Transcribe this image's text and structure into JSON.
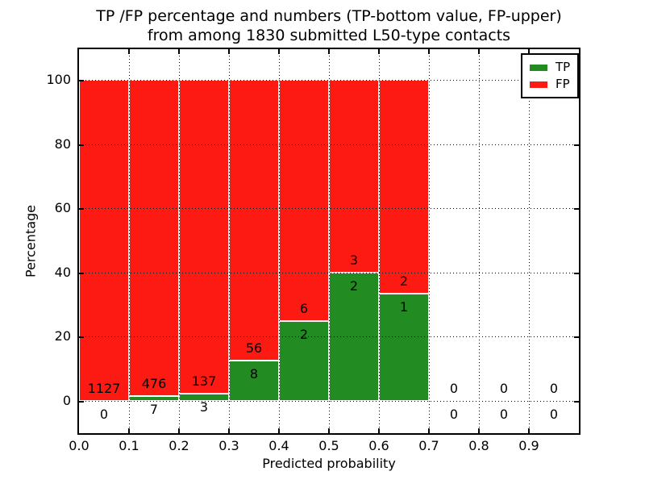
{
  "chart_data": {
    "type": "bar",
    "stacked": true,
    "title": "TP /FP percentage and numbers (TP-bottom value, FP-upper) from among 1830 submitted L50-type contacts",
    "title_line1": "TP /FP percentage and numbers (TP-bottom value, FP-upper)",
    "title_line2": "from among 1830 submitted L50-type contacts",
    "xlabel": "Predicted probability",
    "ylabel": "Percentage",
    "total_contacts": 1830,
    "xlim": [
      0.0,
      1.0
    ],
    "ylim": [
      -10,
      109.5
    ],
    "xticks": [
      "0.0",
      "0.1",
      "0.2",
      "0.3",
      "0.4",
      "0.5",
      "0.6",
      "0.7",
      "0.8",
      "0.9"
    ],
    "yticks": [
      0,
      20,
      40,
      60,
      80,
      100
    ],
    "grid": "dotted",
    "legend_position": "upper right",
    "series": [
      {
        "name": "TP",
        "color": "#228b22"
      },
      {
        "name": "FP",
        "color": "#fc1a13"
      }
    ],
    "bins": [
      {
        "range": [
          0.0,
          0.1
        ],
        "tp": 0,
        "fp": 1127,
        "tp_pct": 0.0
      },
      {
        "range": [
          0.1,
          0.2
        ],
        "tp": 7,
        "fp": 476,
        "tp_pct": 1.45
      },
      {
        "range": [
          0.2,
          0.3
        ],
        "tp": 3,
        "fp": 137,
        "tp_pct": 2.14
      },
      {
        "range": [
          0.3,
          0.4
        ],
        "tp": 8,
        "fp": 56,
        "tp_pct": 12.5
      },
      {
        "range": [
          0.4,
          0.5
        ],
        "tp": 2,
        "fp": 6,
        "tp_pct": 25.0
      },
      {
        "range": [
          0.5,
          0.6
        ],
        "tp": 2,
        "fp": 3,
        "tp_pct": 40.0
      },
      {
        "range": [
          0.6,
          0.7
        ],
        "tp": 1,
        "fp": 2,
        "tp_pct": 33.33
      },
      {
        "range": [
          0.7,
          0.8
        ],
        "tp": 0,
        "fp": 0,
        "tp_pct": null
      },
      {
        "range": [
          0.8,
          0.9
        ],
        "tp": 0,
        "fp": 0,
        "tp_pct": null
      },
      {
        "range": [
          0.9,
          1.0
        ],
        "tp": 0,
        "fp": 0,
        "tp_pct": null
      }
    ]
  }
}
